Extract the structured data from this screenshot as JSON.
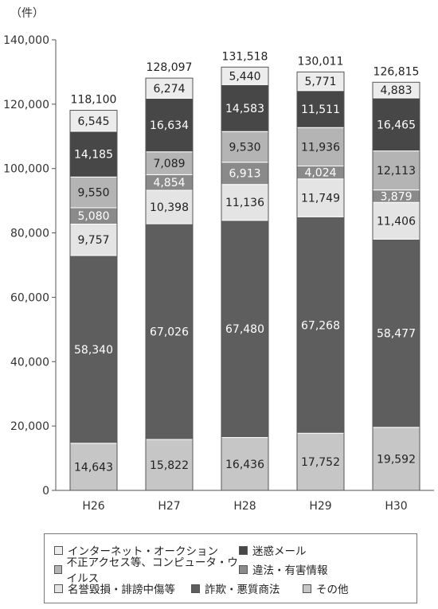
{
  "chart_data": {
    "type": "bar",
    "stacked": true,
    "unit_label": "（件）",
    "categories": [
      "H26",
      "H27",
      "H28",
      "H29",
      "H30"
    ],
    "totals": [
      "118,100",
      "128,097",
      "131,518",
      "130,011",
      "126,815"
    ],
    "ylim": [
      0,
      140000
    ],
    "yticks": [
      "0",
      "20,000",
      "40,000",
      "60,000",
      "80,000",
      "100,000",
      "120,000",
      "140,000"
    ],
    "ytick_values": [
      0,
      20000,
      40000,
      60000,
      80000,
      100000,
      120000,
      140000
    ],
    "series": [
      {
        "name": "その他",
        "color": "#c6c6c6",
        "text_color": "#222222",
        "values": [
          14643,
          15822,
          16436,
          17752,
          19592
        ],
        "labels": [
          "14,643",
          "15,822",
          "16,436",
          "17,752",
          "19,592"
        ]
      },
      {
        "name": "詐欺・悪質商法",
        "color": "#5e5e5e",
        "text_color": "#ffffff",
        "values": [
          58340,
          67026,
          67480,
          67268,
          58477
        ],
        "labels": [
          "58,340",
          "67,026",
          "67,480",
          "67,268",
          "58,477"
        ]
      },
      {
        "name": "名誉毀損・誹謗中傷等",
        "color": "#e4e4e4",
        "text_color": "#222222",
        "values": [
          9757,
          10398,
          11136,
          11749,
          11406
        ],
        "labels": [
          "9,757",
          "10,398",
          "11,136",
          "11,749",
          "11,406"
        ]
      },
      {
        "name": "違法・有害情報",
        "color": "#8a8a8a",
        "text_color": "#ffffff",
        "values": [
          5080,
          4854,
          6913,
          4024,
          3879
        ],
        "labels": [
          "5,080",
          "4,854",
          "6,913",
          "4,024",
          "3,879"
        ]
      },
      {
        "name": "不正アクセス等、コンピュータ・ウイルス",
        "color": "#b4b4b4",
        "text_color": "#222222",
        "values": [
          9550,
          7089,
          9530,
          11936,
          12113
        ],
        "labels": [
          "9,550",
          "7,089",
          "9,530",
          "11,936",
          "12,113"
        ]
      },
      {
        "name": "迷惑メール",
        "color": "#474747",
        "text_color": "#ffffff",
        "values": [
          14185,
          16634,
          14583,
          11511,
          16465
        ],
        "labels": [
          "14,185",
          "16,634",
          "14,583",
          "11,511",
          "16,465"
        ]
      },
      {
        "name": "インターネット・オークション",
        "color": "#ececec",
        "text_color": "#222222",
        "values": [
          6545,
          6274,
          5440,
          5771,
          4883
        ],
        "labels": [
          "6,545",
          "6,274",
          "5,440",
          "5,771",
          "4,883"
        ]
      }
    ],
    "legend_placement": "bottom",
    "legend": [
      [
        "インターネット・オークション",
        "迷惑メール"
      ],
      [
        "不正アクセス等、コンピュータ・ウイルス",
        "違法・有害情報"
      ],
      [
        "名誉毀損・誹謗中傷等",
        "詐欺・悪質商法",
        "その他"
      ]
    ],
    "legend_colors": [
      [
        "#ececec",
        "#474747"
      ],
      [
        "#b4b4b4",
        "#8a8a8a"
      ],
      [
        "#e4e4e4",
        "#5e5e5e",
        "#c6c6c6"
      ]
    ],
    "grid": false
  }
}
